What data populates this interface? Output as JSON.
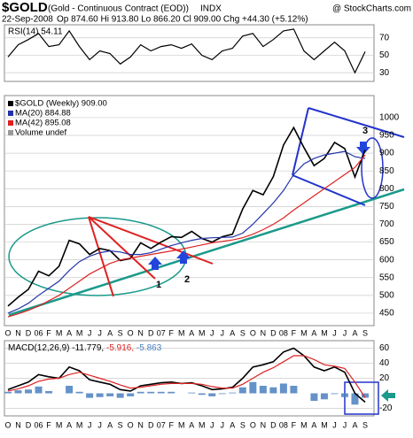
{
  "header": {
    "title": "$GOLD",
    "subtitle": "(Gold - Continuous Contract (EOD))",
    "exchange": "INDX",
    "source": "@ StockCharts.com",
    "date": "22-Sep-2008",
    "quote": "Op 874.60 Hi 913.80 Lo 866.20 Cl 909.00 Chg +44.30 (+5.12%)"
  },
  "chart_data": [
    {
      "type": "line",
      "title": "RSI(14) 54.11",
      "color": "#000000",
      "values": [
        48,
        62,
        68,
        75,
        60,
        62,
        78,
        60,
        45,
        55,
        52,
        40,
        48,
        62,
        55,
        60,
        62,
        58,
        63,
        50,
        45,
        55,
        58,
        72,
        75,
        60,
        68,
        78,
        80,
        55,
        45,
        55,
        65,
        55,
        30,
        54.11
      ],
      "ylim": [
        20,
        85
      ],
      "yticks": [
        70,
        50,
        30
      ]
    },
    {
      "type": "line",
      "legend_note": "Volume undef",
      "categories": [
        "O",
        "N",
        "D",
        "06",
        "F",
        "M",
        "A",
        "M",
        "J",
        "J",
        "A",
        "S",
        "O",
        "N",
        "D",
        "07",
        "F",
        "M",
        "A",
        "M",
        "J",
        "J",
        "A",
        "S",
        "O",
        "N",
        "D",
        "08",
        "F",
        "M",
        "A",
        "M",
        "J",
        "J",
        "A",
        "S"
      ],
      "series": [
        {
          "name": "$GOLD (Weekly) 909.00",
          "color": "#000000",
          "values": [
            470,
            495,
            517,
            568,
            555,
            582,
            655,
            645,
            615,
            632,
            626,
            598,
            604,
            648,
            632,
            650,
            665,
            663,
            680,
            660,
            650,
            665,
            672,
            743,
            795,
            783,
            834,
            923,
            972,
            916,
            865,
            885,
            930,
            913,
            833,
            909
          ]
        },
        {
          "name": "MA(20) 884.88",
          "color": "#2233aa",
          "values": [
            450,
            462,
            478,
            500,
            520,
            540,
            570,
            595,
            610,
            620,
            625,
            622,
            615,
            615,
            620,
            630,
            640,
            648,
            655,
            660,
            662,
            663,
            664,
            675,
            700,
            730,
            760,
            795,
            840,
            870,
            885,
            895,
            900,
            905,
            890,
            884.88
          ]
        },
        {
          "name": "MA(42) 895.08",
          "color": "#dd2222",
          "values": [
            440,
            448,
            458,
            470,
            485,
            500,
            520,
            540,
            560,
            575,
            590,
            600,
            605,
            610,
            615,
            620,
            625,
            630,
            636,
            642,
            648,
            652,
            656,
            662,
            672,
            685,
            700,
            718,
            740,
            760,
            780,
            800,
            820,
            840,
            860,
            895.08
          ]
        }
      ],
      "ylim": [
        415,
        1062
      ],
      "yticks": [
        450,
        500,
        550,
        600,
        650,
        700,
        750,
        800,
        850,
        900,
        950,
        1000
      ],
      "annotations": [
        "1",
        "2",
        "3"
      ]
    },
    {
      "type": "line",
      "categories": [
        "O",
        "N",
        "D",
        "06",
        "F",
        "M",
        "A",
        "M",
        "J",
        "J",
        "A",
        "S",
        "O",
        "N",
        "D",
        "07",
        "F",
        "M",
        "A",
        "M",
        "J",
        "J",
        "A",
        "S",
        "O",
        "N",
        "D",
        "08",
        "F",
        "M",
        "A",
        "M",
        "J",
        "J",
        "A",
        "S"
      ],
      "series": [
        {
          "name": "MACD(12,26,9) -11.779,",
          "color": "#000000",
          "values": [
            5,
            10,
            15,
            25,
            22,
            20,
            35,
            30,
            18,
            15,
            12,
            5,
            3,
            10,
            12,
            14,
            15,
            13,
            14,
            10,
            5,
            6,
            8,
            20,
            35,
            38,
            42,
            55,
            60,
            50,
            35,
            30,
            35,
            28,
            0,
            -11.779
          ]
        },
        {
          "name": "-5.916,",
          "color": "#dd2222",
          "values": [
            3,
            6,
            10,
            16,
            19,
            20,
            25,
            28,
            24,
            20,
            16,
            11,
            7,
            8,
            10,
            12,
            13,
            13,
            13,
            12,
            9,
            7,
            7,
            12,
            20,
            28,
            34,
            42,
            50,
            50,
            45,
            38,
            36,
            33,
            15,
            -5.916
          ]
        },
        {
          "name": "-5.863",
          "color": "#4a7fc0",
          "type": "bar",
          "values": [
            2,
            4,
            5,
            9,
            3,
            0,
            10,
            2,
            -6,
            -5,
            -4,
            -6,
            -4,
            2,
            2,
            2,
            2,
            0,
            1,
            -2,
            -4,
            -1,
            1,
            8,
            15,
            10,
            8,
            13,
            10,
            0,
            -10,
            -8,
            -1,
            -5,
            -15,
            -5.863
          ]
        }
      ],
      "ylim": [
        -30,
        70
      ],
      "yticks": [
        60,
        40,
        20,
        -20
      ]
    }
  ]
}
